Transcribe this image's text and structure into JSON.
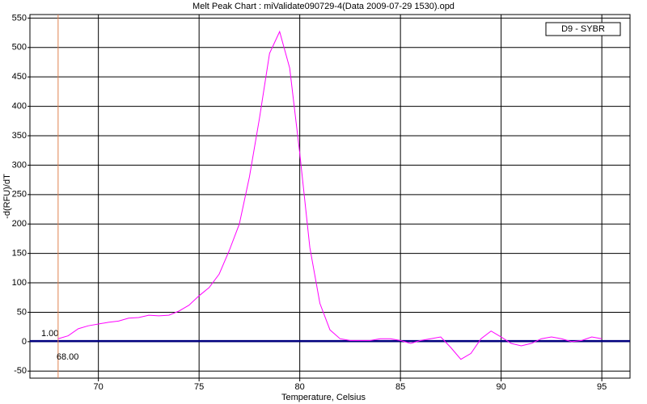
{
  "chart_data": {
    "type": "line",
    "title": "Melt Peak Chart : miValidate090729-4(Data 2009-07-29 1530).opd",
    "x_label": "Temperature, Celsius",
    "y_label": "-d(RFU)/dT",
    "x": [
      68,
      68.5,
      69,
      69.5,
      70,
      70.5,
      71,
      71.5,
      72,
      72.5,
      73,
      73.5,
      74,
      74.5,
      75,
      75.5,
      76,
      76.5,
      77,
      77.5,
      78,
      78.5,
      79,
      79.5,
      80,
      80.5,
      81,
      81.5,
      82,
      82.5,
      83,
      83.5,
      84,
      84.5,
      85,
      85.5,
      86,
      86.5,
      87,
      87.5,
      88,
      88.5,
      89,
      89.5,
      90,
      90.5,
      91,
      91.5,
      92,
      92.5,
      93,
      93.5,
      94,
      94.5,
      95
    ],
    "series": [
      {
        "name": "D9 - SYBR",
        "color": "#ff00ff",
        "values": [
          5,
          10,
          22,
          27,
          30,
          33,
          35,
          40,
          41,
          45,
          44,
          45,
          52,
          62,
          78,
          92,
          115,
          155,
          200,
          280,
          380,
          490,
          527,
          465,
          320,
          160,
          65,
          20,
          5,
          2,
          2,
          2,
          5,
          5,
          2,
          -3,
          2,
          5,
          8,
          -10,
          -30,
          -20,
          5,
          18,
          8,
          -3,
          -7,
          -3,
          5,
          8,
          5,
          0,
          2,
          8,
          5
        ]
      }
    ],
    "threshold": {
      "value": 1,
      "label": "1.00"
    },
    "threshold_color": "#000080",
    "cursor": {
      "value": 68,
      "label": "68.00"
    },
    "cursor_color": "#e08050",
    "xlim": [
      66.6,
      96.4
    ],
    "ylim": [
      -62,
      556
    ],
    "xticks": [
      70,
      75,
      80,
      85,
      90,
      95
    ],
    "yticks": [
      -50,
      0,
      50,
      100,
      150,
      200,
      250,
      300,
      350,
      400,
      450,
      500,
      550
    ],
    "grid": true,
    "legend": "top-right"
  }
}
